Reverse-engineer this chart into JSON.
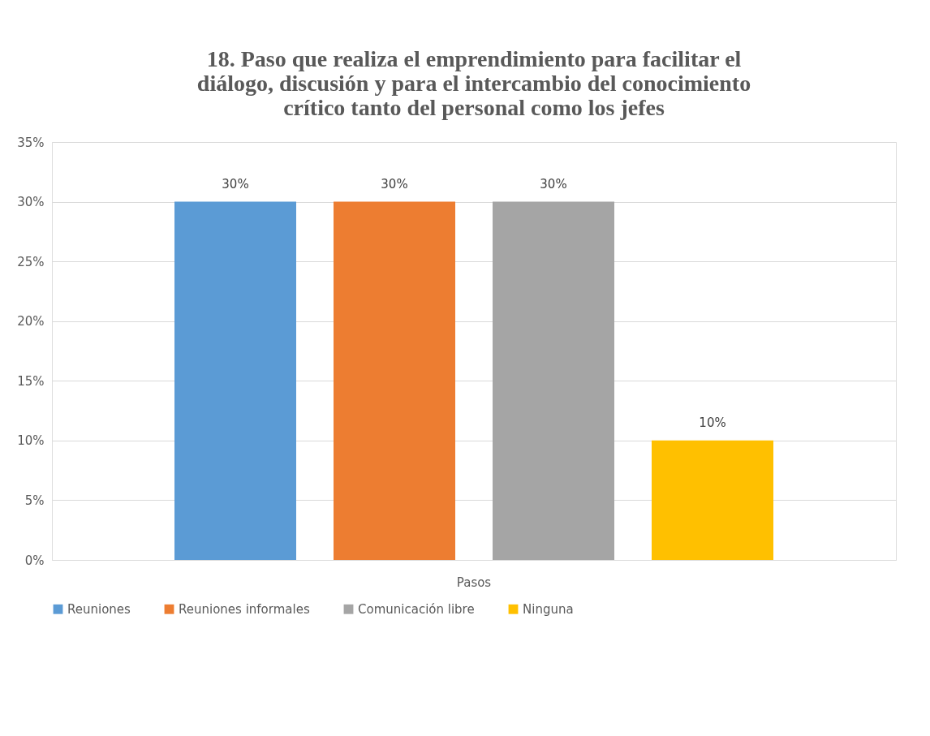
{
  "chart_data": {
    "type": "bar",
    "title": "18.  Paso que realiza el emprendimiento para facilitar el diálogo, discusión y para el intercambio del conocimiento crítico tanto del personal como los jefes",
    "categories": [
      "Pasos"
    ],
    "series": [
      {
        "name": "Reuniones",
        "color": "#5b9bd5",
        "values": [
          30
        ],
        "value_labels": [
          "30%"
        ]
      },
      {
        "name": "Reuniones informales",
        "color": "#ed7d31",
        "values": [
          30
        ],
        "value_labels": [
          "30%"
        ]
      },
      {
        "name": "Comunicación libre",
        "color": "#a5a5a5",
        "values": [
          30
        ],
        "value_labels": [
          "30%"
        ]
      },
      {
        "name": "Ninguna",
        "color": "#ffc000",
        "values": [
          10
        ],
        "value_labels": [
          "10%"
        ]
      }
    ],
    "ylim": [
      0,
      35
    ],
    "yticks": [
      {
        "value": 0,
        "label": "0%"
      },
      {
        "value": 5,
        "label": "5%"
      },
      {
        "value": 10,
        "label": "10%"
      },
      {
        "value": 15,
        "label": "15%"
      },
      {
        "value": 20,
        "label": "20%"
      },
      {
        "value": 25,
        "label": "25%"
      },
      {
        "value": 30,
        "label": "30%"
      },
      {
        "value": 35,
        "label": "35%"
      }
    ],
    "grid": "y",
    "legend": "bottom"
  }
}
